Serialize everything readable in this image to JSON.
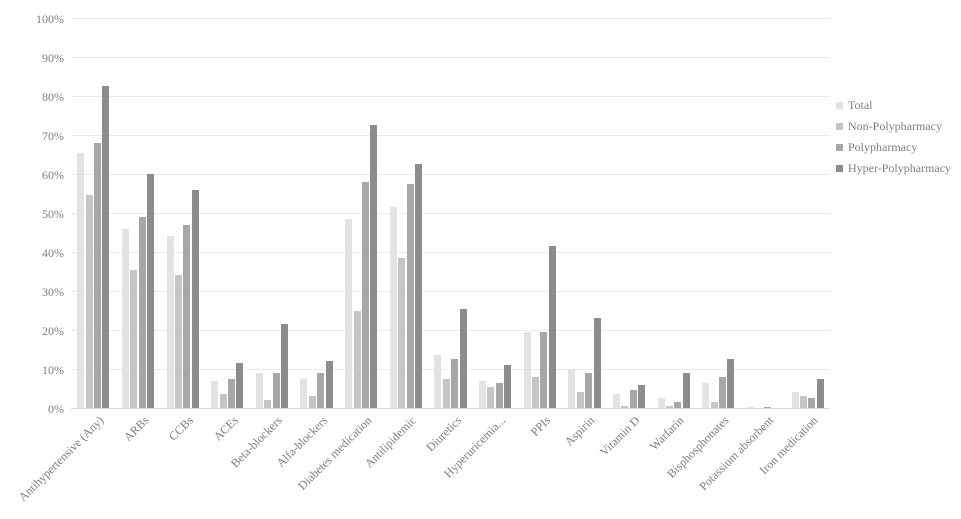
{
  "chart_data": {
    "type": "bar",
    "title": "",
    "xlabel": "",
    "ylabel": "",
    "ylim": [
      0,
      100
    ],
    "ytick_step": 10,
    "ytick_format": "percent",
    "yticks": [
      "0%",
      "10%",
      "20%",
      "30%",
      "40%",
      "50%",
      "60%",
      "70%",
      "80%",
      "90%",
      "100%"
    ],
    "grid": true,
    "legend_position": "right",
    "categories": [
      "Antihypertensive (Any)",
      "ARBs",
      "CCBs",
      "ACEs",
      "Beta-blockers",
      "Alfa-blockers",
      "Diabetes medication",
      "Antilipidemic",
      "Diuretics",
      "Hyperuricemia...",
      "PPIs",
      "Aspirin",
      "Vitamin D",
      "Warfarin",
      "Bisphosphonates",
      "Potassium absorbent",
      "Iron medication"
    ],
    "series": [
      {
        "name": "Total",
        "color": "#e3e3e3",
        "values": [
          65.5,
          46,
          44,
          7,
          9,
          7.5,
          48.5,
          51.5,
          13.5,
          7,
          19.5,
          10,
          3.5,
          2.5,
          6.5,
          0.2,
          4
        ]
      },
      {
        "name": "Non-Polypharmacy",
        "color": "#c5c5c5",
        "values": [
          54.5,
          35.5,
          34,
          3.5,
          2,
          3,
          25,
          38.5,
          7.5,
          5.5,
          8,
          4,
          0.5,
          0.5,
          1.5,
          0,
          3
        ]
      },
      {
        "name": "Polypharmacy",
        "color": "#a7a7a7",
        "values": [
          68,
          49,
          47,
          7.5,
          9,
          9,
          58,
          57.5,
          12.5,
          6.5,
          19.5,
          9,
          4.5,
          1.5,
          8,
          0.3,
          2.5
        ]
      },
      {
        "name": "Hyper-Polypharmacy",
        "color": "#8c8c8c",
        "values": [
          82.5,
          60,
          56,
          11.5,
          21.5,
          12,
          72.5,
          62.5,
          25.5,
          11,
          41.5,
          23,
          6,
          9,
          12.5,
          0,
          7.5
        ]
      }
    ]
  }
}
